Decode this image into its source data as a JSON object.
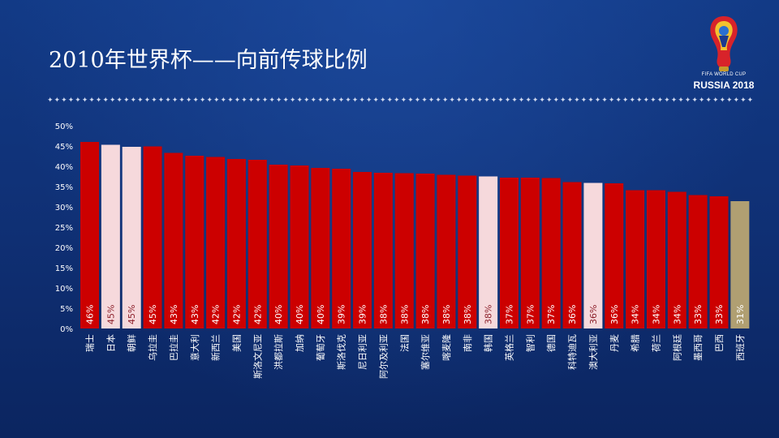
{
  "title": "2010年世界杯——向前传球比例",
  "logo": {
    "line1": "FIFA WORLD CUP",
    "line2": "RUSSIA 2018",
    "icon": "world-cup-trophy-icon"
  },
  "decor": {
    "star_row": "✦✦✦✦✦✦✦✦✦✦✦✦✦✦✦✦✦✦✦✦✦✦✦✦✦✦✦✦✦✦✦✦✦✦✦✦✦✦✦✦✦✦✦✦✦✦✦✦✦✦✦✦✦✦✦✦✦✦✦✦✦✦✦✦✦✦✦✦✦✦✦✦✦✦✦✦✦✦✦✦✦✦✦✦✦✦✦✦✦✦✦✦✦✦✦✦✦✦✦✦✦✦✦✦✦✦✦✦✦✦✦✦✦✦✦✦✦"
  },
  "colors": {
    "bar_red": "#cc0000",
    "bar_pink": "#f6d9dc",
    "bar_gold": "#b09f72",
    "label_light": "#ffffff",
    "label_dark": "#8c1f2a",
    "axis_text": "#ffffff",
    "background": "#0f2f73"
  },
  "chart_data": {
    "type": "bar",
    "title": "",
    "xlabel": "",
    "ylabel": "",
    "ylim": [
      0,
      50
    ],
    "yticks": [
      "0%",
      "5%",
      "10%",
      "15%",
      "20%",
      "25%",
      "30%",
      "35%",
      "40%",
      "45%",
      "50%"
    ],
    "grid": false,
    "categories": [
      "瑞士",
      "日本",
      "朝鲜",
      "乌拉圭",
      "巴拉圭",
      "意大利",
      "新西兰",
      "美国",
      "斯洛文尼亚",
      "洪都拉斯",
      "加纳",
      "葡萄牙",
      "斯洛伐克",
      "尼日利亚",
      "阿尔及利亚",
      "法国",
      "塞尔维亚",
      "喀麦隆",
      "南非",
      "韩国",
      "英格兰",
      "智利",
      "德国",
      "科特迪瓦",
      "澳大利亚",
      "丹麦",
      "希腊",
      "荷兰",
      "阿根廷",
      "墨西哥",
      "巴西",
      "西班牙"
    ],
    "values": [
      46,
      45.3,
      44.8,
      44.9,
      43.3,
      42.6,
      42.3,
      41.8,
      41.6,
      40.4,
      40.2,
      39.6,
      39.4,
      38.6,
      38.4,
      38.3,
      38.2,
      37.9,
      37.7,
      37.5,
      37.2,
      37.2,
      37.1,
      36.1,
      35.9,
      35.8,
      34.1,
      34.1,
      33.7,
      32.9,
      32.6,
      31.4
    ],
    "data_labels": [
      "46%",
      "45%",
      "45%",
      "45%",
      "43%",
      "43%",
      "42%",
      "42%",
      "42%",
      "40%",
      "40%",
      "40%",
      "39%",
      "39%",
      "38%",
      "38%",
      "38%",
      "38%",
      "38%",
      "38%",
      "37%",
      "37%",
      "37%",
      "36%",
      "36%",
      "36%",
      "34%",
      "34%",
      "34%",
      "33%",
      "33%",
      "31%"
    ],
    "bar_colors": [
      "#cc0000",
      "#f6d9dc",
      "#f6d9dc",
      "#cc0000",
      "#cc0000",
      "#cc0000",
      "#cc0000",
      "#cc0000",
      "#cc0000",
      "#cc0000",
      "#cc0000",
      "#cc0000",
      "#cc0000",
      "#cc0000",
      "#cc0000",
      "#cc0000",
      "#cc0000",
      "#cc0000",
      "#cc0000",
      "#f6d9dc",
      "#cc0000",
      "#cc0000",
      "#cc0000",
      "#cc0000",
      "#f6d9dc",
      "#cc0000",
      "#cc0000",
      "#cc0000",
      "#cc0000",
      "#cc0000",
      "#cc0000",
      "#b09f72"
    ]
  }
}
